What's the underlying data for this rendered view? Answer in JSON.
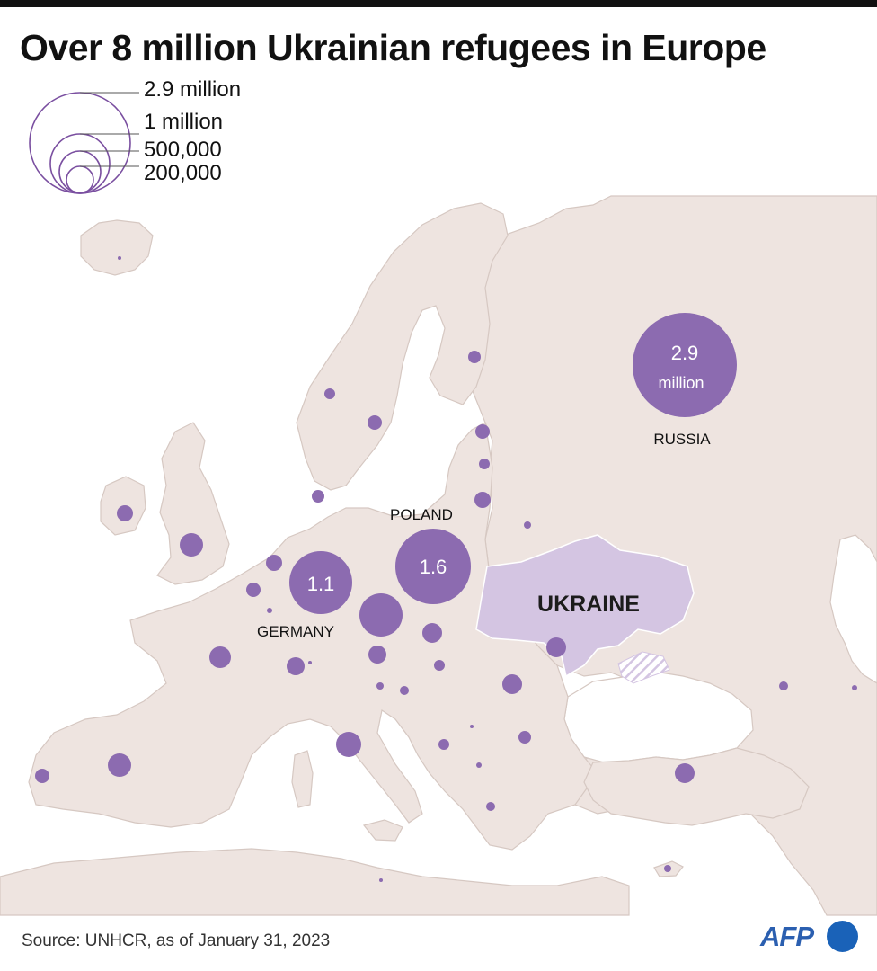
{
  "title": "Over 8 million Ukrainian refugees in Europe",
  "legend": {
    "items": [
      {
        "label": "2.9 million",
        "value": 2900000
      },
      {
        "label": "1 million",
        "value": 1000000
      },
      {
        "label": "500,000",
        "value": 500000
      },
      {
        "label": "200,000",
        "value": 200000
      }
    ]
  },
  "labels": {
    "russia": "RUSSIA",
    "poland": "POLAND",
    "germany": "GERMANY",
    "ukraine": "UKRAINE"
  },
  "bubbles": {
    "russia": {
      "value": "2.9",
      "unit": "million"
    },
    "poland": {
      "value": "1.6"
    },
    "germany": {
      "value": "1.1"
    }
  },
  "source": "Source: UNHCR, as of January  31, 2023",
  "logo": {
    "text": "AFP"
  },
  "colors": {
    "land": "#eee4e0",
    "border": "#d6c8c2",
    "sea": "#ffffff",
    "bubble": "#8c6bb0",
    "ukraine": "#d4c5e2",
    "title": "#111111",
    "afp": "#1a62b8"
  }
}
